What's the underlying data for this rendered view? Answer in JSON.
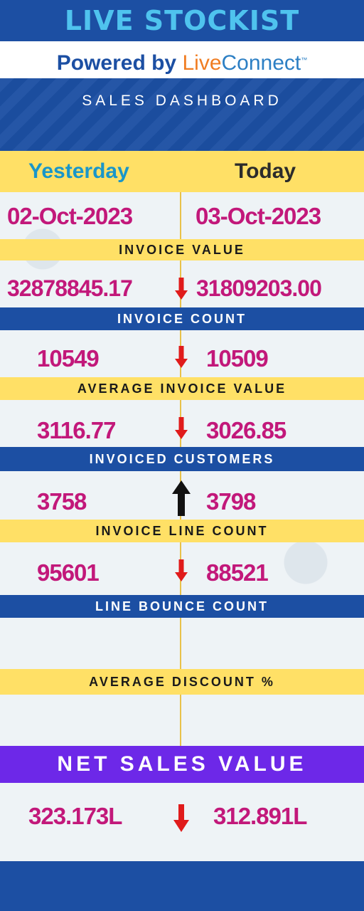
{
  "header": {
    "brand": "LIVE STOCKIST",
    "powered_prefix": "Powered by",
    "powered_live": "Live",
    "powered_connect": "Connect",
    "powered_tm": "™",
    "dashboard_title": "SALES DASHBOARD"
  },
  "columns": {
    "yesterday_label": "Yesterday",
    "today_label": "Today",
    "yesterday_date": "02-Oct-2023",
    "today_date": "03-Oct-2023"
  },
  "metrics": [
    {
      "label": "INVOICE VALUE",
      "yesterday": "32878845.17",
      "today": "31809203.00",
      "trend": "down"
    },
    {
      "label": "INVOICE COUNT",
      "yesterday": "10549",
      "today": "10509",
      "trend": "down"
    },
    {
      "label": "AVERAGE INVOICE VALUE",
      "yesterday": "3116.77",
      "today": "3026.85",
      "trend": "down"
    },
    {
      "label": "INVOICED CUSTOMERS",
      "yesterday": "3758",
      "today": "3798",
      "trend": "up"
    },
    {
      "label": "INVOICE LINE COUNT",
      "yesterday": "95601",
      "today": "88521",
      "trend": "down"
    },
    {
      "label": "LINE BOUNCE COUNT"
    },
    {
      "label": "AVERAGE DISCOUNT %"
    }
  ],
  "net_sales": {
    "label": "NET SALES VALUE",
    "yesterday": "323.173L",
    "today": "312.891L",
    "trend": "down"
  },
  "colors": {
    "brand_blue": "#1c4fa3",
    "accent_yellow": "#ffe066",
    "value_magenta": "#c2187a",
    "down_red": "#e01b1b",
    "up_black": "#111111",
    "net_purple": "#6d28e8"
  }
}
